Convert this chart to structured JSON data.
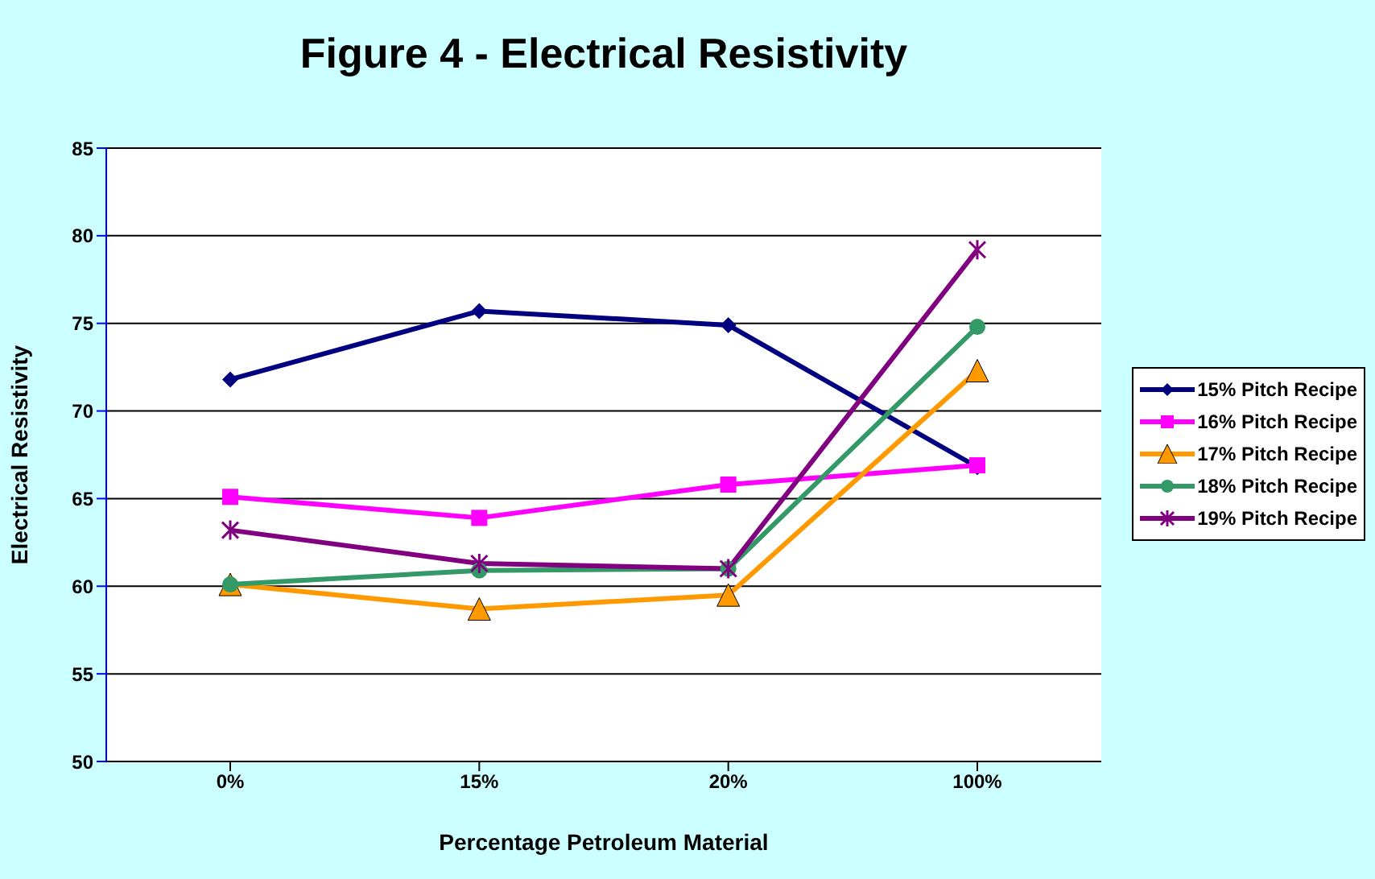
{
  "chart_data": {
    "type": "line",
    "title": "Figure 4 - Electrical Resistivity",
    "xlabel": "Percentage Petroleum Material",
    "ylabel": "Electrical Resistivity",
    "categories": [
      "0%",
      "15%",
      "20%",
      "100%"
    ],
    "series": [
      {
        "name": "15% Pitch Recipe",
        "color": "#000080",
        "marker": "diamond",
        "values": [
          71.8,
          75.7,
          74.9,
          66.8
        ]
      },
      {
        "name": "16% Pitch Recipe",
        "color": "#ff00ff",
        "marker": "square",
        "values": [
          65.1,
          63.9,
          65.8,
          66.9
        ]
      },
      {
        "name": "17% Pitch Recipe",
        "color": "#ff9900",
        "marker": "triangle",
        "values": [
          60.1,
          58.7,
          59.5,
          72.3
        ]
      },
      {
        "name": "18% Pitch Recipe",
        "color": "#339966",
        "marker": "circle",
        "values": [
          60.1,
          60.9,
          61.0,
          74.8
        ]
      },
      {
        "name": "19% Pitch Recipe",
        "color": "#800080",
        "marker": "cross",
        "values": [
          63.2,
          61.3,
          61.0,
          79.2
        ]
      }
    ],
    "ylim": [
      50,
      85
    ],
    "yticks": [
      50,
      55,
      60,
      65,
      70,
      75,
      80,
      85
    ],
    "grid": "y",
    "legend": "right"
  }
}
